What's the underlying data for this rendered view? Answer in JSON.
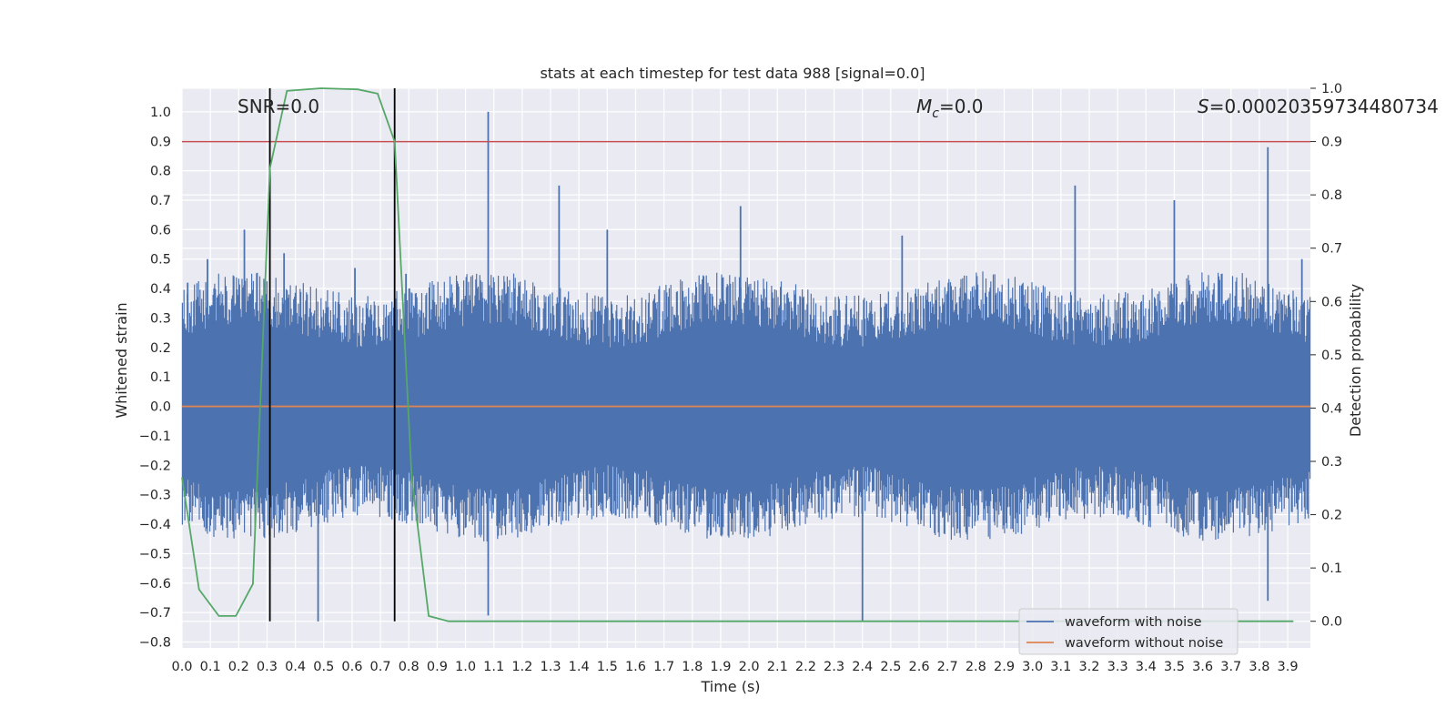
{
  "chart_data": {
    "type": "line",
    "title": "stats at each timestep for test data 988 [signal=0.0]",
    "xlabel": "Time (s)",
    "ylabel": "Whitened strain",
    "y2label": "Detection probability",
    "xlim": [
      0.0,
      3.98
    ],
    "ylim": [
      -0.82,
      1.08
    ],
    "y2lim": [
      -0.05,
      1.0
    ],
    "x_ticks": [
      "0.0",
      "0.1",
      "0.2",
      "0.3",
      "0.4",
      "0.5",
      "0.6",
      "0.7",
      "0.8",
      "0.9",
      "1.0",
      "1.1",
      "1.2",
      "1.3",
      "1.4",
      "1.5",
      "1.6",
      "1.7",
      "1.8",
      "1.9",
      "2.0",
      "2.1",
      "2.2",
      "2.3",
      "2.4",
      "2.5",
      "2.6",
      "2.7",
      "2.8",
      "2.9",
      "3.0",
      "3.1",
      "3.2",
      "3.3",
      "3.4",
      "3.5",
      "3.6",
      "3.7",
      "3.8",
      "3.9"
    ],
    "y_ticks": [
      "1.0",
      "0.9",
      "0.8",
      "0.7",
      "0.6",
      "0.5",
      "0.4",
      "0.3",
      "0.2",
      "0.1",
      "0.0",
      "−0.1",
      "−0.2",
      "−0.3",
      "−0.4",
      "−0.5",
      "−0.6",
      "−0.7",
      "−0.8"
    ],
    "y2_ticks": [
      "1.0",
      "0.9",
      "0.8",
      "0.7",
      "0.6",
      "0.5",
      "0.4",
      "0.3",
      "0.2",
      "0.1",
      "0.0"
    ],
    "annotations": {
      "snr": "SNR=0.0",
      "mc_symbol": "M",
      "mc_sub": "c",
      "mc_value": "=0.0",
      "s_symbol": "S",
      "s_value": "=0.00020359734480734"
    },
    "threshold_y2": 0.9,
    "vertical_markers_x": [
      0.31,
      0.75
    ],
    "series": [
      {
        "name": "waveform with noise",
        "color": "#4c72b0",
        "axis": "y",
        "description": "noisy whitened strain, envelope ~±0.4 with spikes",
        "spikes": [
          {
            "x": 0.02,
            "y": 0.42
          },
          {
            "x": 0.09,
            "y": 0.5
          },
          {
            "x": 0.22,
            "y": 0.6
          },
          {
            "x": 0.36,
            "y": 0.52
          },
          {
            "x": 0.48,
            "y": -0.73
          },
          {
            "x": 0.61,
            "y": 0.47
          },
          {
            "x": 0.79,
            "y": 0.45
          },
          {
            "x": 1.08,
            "y": 1.0
          },
          {
            "x": 1.08,
            "y": -0.71
          },
          {
            "x": 1.33,
            "y": 0.75
          },
          {
            "x": 1.5,
            "y": 0.6
          },
          {
            "x": 1.97,
            "y": 0.68
          },
          {
            "x": 2.4,
            "y": -0.73
          },
          {
            "x": 2.54,
            "y": 0.58
          },
          {
            "x": 3.15,
            "y": 0.75
          },
          {
            "x": 3.5,
            "y": 0.7
          },
          {
            "x": 3.83,
            "y": 0.88
          },
          {
            "x": 3.83,
            "y": -0.66
          },
          {
            "x": 3.95,
            "y": 0.5
          }
        ]
      },
      {
        "name": "waveform without noise",
        "color": "#dd8452",
        "axis": "y",
        "x": [
          0.0,
          3.98
        ],
        "y": [
          0.0,
          0.0
        ]
      },
      {
        "name": "detection probability",
        "color": "#55a868",
        "axis": "y2",
        "x": [
          0.0,
          0.06,
          0.13,
          0.19,
          0.25,
          0.31,
          0.37,
          0.49,
          0.62,
          0.69,
          0.75,
          0.81,
          0.87,
          0.94,
          1.0,
          3.92
        ],
        "y": [
          0.27,
          0.06,
          0.01,
          0.01,
          0.07,
          0.85,
          0.995,
          1.0,
          0.998,
          0.99,
          0.9,
          0.27,
          0.01,
          0.0,
          0.0,
          0.0
        ]
      }
    ],
    "legend": {
      "position": "lower-right",
      "entries": [
        {
          "label": "waveform with noise",
          "color": "#4c72b0"
        },
        {
          "label": "waveform without noise",
          "color": "#dd8452"
        }
      ]
    },
    "colors": {
      "background": "#eaeaf2",
      "grid": "#ffffff",
      "threshold": "#c44e52",
      "markers": "#000000"
    }
  }
}
